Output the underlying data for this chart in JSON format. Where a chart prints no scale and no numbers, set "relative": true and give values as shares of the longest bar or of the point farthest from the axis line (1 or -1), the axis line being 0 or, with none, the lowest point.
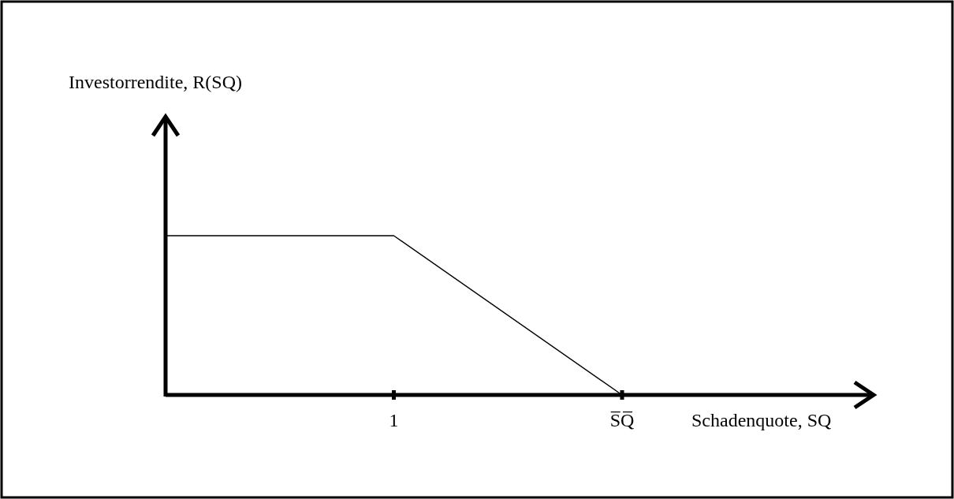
{
  "chart_data": {
    "type": "line",
    "relative": true,
    "xlabel": "Schadenquote, SQ",
    "annotations": [
      "Investorrendite, R(SQ)"
    ],
    "categories": [
      null,
      "1",
      "S̅Q̅"
    ],
    "values": [
      1,
      1,
      0
    ],
    "color": "#000000"
  }
}
